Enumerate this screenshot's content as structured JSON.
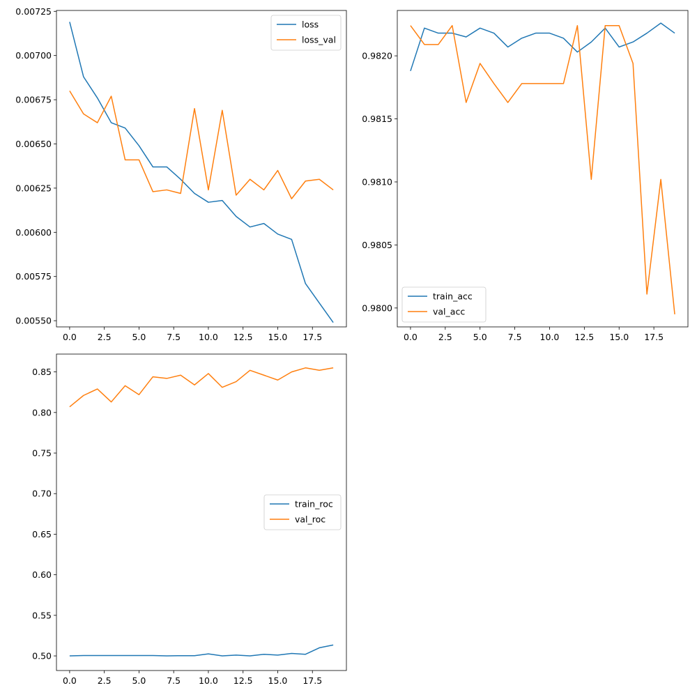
{
  "chart_data": [
    {
      "type": "line",
      "title": "",
      "xlabel": "",
      "ylabel": "",
      "x": [
        0,
        1,
        2,
        3,
        4,
        5,
        6,
        7,
        8,
        9,
        10,
        11,
        12,
        13,
        14,
        15,
        16,
        17,
        18,
        19
      ],
      "xlim": [
        -0.95,
        19.95
      ],
      "ylim": [
        0.005465,
        0.007255
      ],
      "xticks": [
        0.0,
        2.5,
        5.0,
        7.5,
        10.0,
        12.5,
        15.0,
        17.5
      ],
      "xtick_labels": [
        "0.0",
        "2.5",
        "5.0",
        "7.5",
        "10.0",
        "12.5",
        "15.0",
        "17.5"
      ],
      "yticks": [
        0.0055,
        0.00575,
        0.006,
        0.00625,
        0.0065,
        0.00675,
        0.007,
        0.00725
      ],
      "ytick_labels": [
        "0.00550",
        "0.00575",
        "0.00600",
        "0.00625",
        "0.00650",
        "0.00675",
        "0.00700",
        "0.00725"
      ],
      "grid": false,
      "legend_position": "upper-right",
      "series": [
        {
          "name": "loss",
          "color": "#1f77b4",
          "values": [
            0.00719,
            0.00688,
            0.00676,
            0.00662,
            0.00659,
            0.00649,
            0.00637,
            0.00637,
            0.0063,
            0.00622,
            0.00617,
            0.00618,
            0.00609,
            0.00603,
            0.00605,
            0.00599,
            0.00596,
            0.00571,
            0.0056,
            0.00549
          ]
        },
        {
          "name": "loss_val",
          "color": "#ff7f0e",
          "values": [
            0.0068,
            0.00667,
            0.00662,
            0.00677,
            0.00641,
            0.00641,
            0.00623,
            0.00624,
            0.00622,
            0.0067,
            0.00624,
            0.00669,
            0.00621,
            0.0063,
            0.00624,
            0.00635,
            0.00619,
            0.00629,
            0.0063,
            0.00624
          ]
        }
      ]
    },
    {
      "type": "line",
      "title": "",
      "xlabel": "",
      "ylabel": "",
      "x": [
        0,
        1,
        2,
        3,
        4,
        5,
        6,
        7,
        8,
        9,
        10,
        11,
        12,
        13,
        14,
        15,
        16,
        17,
        18,
        19
      ],
      "xlim": [
        -0.95,
        19.95
      ],
      "ylim": [
        0.97985,
        0.98236
      ],
      "xticks": [
        0.0,
        2.5,
        5.0,
        7.5,
        10.0,
        12.5,
        15.0,
        17.5
      ],
      "xtick_labels": [
        "0.0",
        "2.5",
        "5.0",
        "7.5",
        "10.0",
        "12.5",
        "15.0",
        "17.5"
      ],
      "yticks": [
        0.98,
        0.9805,
        0.981,
        0.9815,
        0.982
      ],
      "ytick_labels": [
        "0.9800",
        "0.9805",
        "0.9810",
        "0.9815",
        "0.9820"
      ],
      "grid": false,
      "legend_position": "lower-left",
      "series": [
        {
          "name": "train_acc",
          "color": "#1f77b4",
          "values": [
            0.98188,
            0.98222,
            0.98218,
            0.98218,
            0.98215,
            0.98222,
            0.98218,
            0.98207,
            0.98214,
            0.98218,
            0.98218,
            0.98214,
            0.98203,
            0.98211,
            0.98222,
            0.98207,
            0.98211,
            0.98218,
            0.98226,
            0.98218
          ]
        },
        {
          "name": "val_acc",
          "color": "#ff7f0e",
          "values": [
            0.98224,
            0.98209,
            0.98209,
            0.98224,
            0.98163,
            0.98194,
            0.98178,
            0.98163,
            0.98178,
            0.98178,
            0.98178,
            0.98178,
            0.98224,
            0.98102,
            0.98224,
            0.98224,
            0.98194,
            0.98011,
            0.98102,
            0.97995
          ]
        }
      ]
    },
    {
      "type": "line",
      "title": "",
      "xlabel": "",
      "ylabel": "",
      "x": [
        0,
        1,
        2,
        3,
        4,
        5,
        6,
        7,
        8,
        9,
        10,
        11,
        12,
        13,
        14,
        15,
        16,
        17,
        18,
        19
      ],
      "xlim": [
        -0.95,
        19.95
      ],
      "ylim": [
        0.482,
        0.872
      ],
      "xticks": [
        0.0,
        2.5,
        5.0,
        7.5,
        10.0,
        12.5,
        15.0,
        17.5
      ],
      "xtick_labels": [
        "0.0",
        "2.5",
        "5.0",
        "7.5",
        "10.0",
        "12.5",
        "15.0",
        "17.5"
      ],
      "yticks": [
        0.5,
        0.55,
        0.6,
        0.65,
        0.7,
        0.75,
        0.8,
        0.85
      ],
      "ytick_labels": [
        "0.50",
        "0.55",
        "0.60",
        "0.65",
        "0.70",
        "0.75",
        "0.80",
        "0.85"
      ],
      "grid": false,
      "legend_position": "center-right",
      "series": [
        {
          "name": "train_roc",
          "color": "#1f77b4",
          "values": [
            0.5,
            0.5005,
            0.5005,
            0.5005,
            0.5005,
            0.5005,
            0.5005,
            0.5,
            0.5003,
            0.5003,
            0.5025,
            0.5,
            0.501,
            0.5,
            0.502,
            0.501,
            0.503,
            0.502,
            0.51,
            0.5135
          ]
        },
        {
          "name": "val_roc",
          "color": "#ff7f0e",
          "values": [
            0.807,
            0.821,
            0.829,
            0.813,
            0.833,
            0.822,
            0.844,
            0.842,
            0.846,
            0.834,
            0.848,
            0.831,
            0.838,
            0.852,
            0.846,
            0.84,
            0.85,
            0.855,
            0.852,
            0.855
          ]
        }
      ]
    }
  ]
}
